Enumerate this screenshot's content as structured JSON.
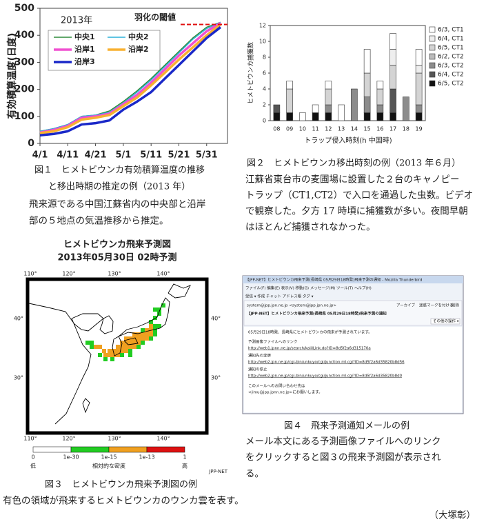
{
  "chart_data": [
    {
      "type": "line",
      "title": "2013年",
      "ylabel": "有効積算温度(日度)",
      "categories": [
        "4/1",
        null,
        "4/11",
        null,
        "4/21",
        null,
        "5/1",
        null,
        "5/11",
        null,
        "5/21",
        null,
        "5/31",
        null
      ],
      "ylim": [
        0,
        500
      ],
      "yticks": [
        0,
        100,
        200,
        300,
        400,
        500
      ],
      "series": [
        {
          "name": "中央1",
          "color": "#2e8b3a",
          "width": 1.5,
          "values": [
            45,
            55,
            70,
            100,
            105,
            120,
            155,
            195,
            240,
            290,
            340,
            390,
            430,
            448
          ]
        },
        {
          "name": "中央2",
          "color": "#2ab0d8",
          "width": 1.5,
          "values": [
            45,
            55,
            70,
            100,
            105,
            115,
            150,
            190,
            235,
            285,
            335,
            385,
            425,
            448
          ]
        },
        {
          "name": "沿岸1",
          "color": "#f050d0",
          "width": 3.5,
          "values": [
            40,
            50,
            65,
            95,
            100,
            110,
            145,
            180,
            225,
            275,
            325,
            370,
            415,
            445
          ]
        },
        {
          "name": "沿岸2",
          "color": "#f8b030",
          "width": 3.5,
          "values": [
            38,
            45,
            60,
            88,
            95,
            105,
            138,
            170,
            215,
            262,
            310,
            355,
            400,
            440
          ]
        },
        {
          "name": "沿岸3",
          "color": "#1a28c8",
          "width": 3.5,
          "values": [
            30,
            35,
            45,
            70,
            75,
            85,
            125,
            155,
            190,
            240,
            290,
            340,
            390,
            430
          ]
        }
      ],
      "threshold": {
        "label": "羽化の閾値",
        "value": 440,
        "color": "#e01010"
      }
    },
    {
      "type": "bar",
      "stacked": true,
      "ylabel": "ヒメトビウンカ捕獲数",
      "xlabel": "トラップ侵入時刻(h 中国時)",
      "categories": [
        "08",
        "09",
        "10",
        "11",
        "12",
        "13",
        "14",
        "15",
        "16",
        "17",
        "18",
        "19"
      ],
      "ylim": [
        0,
        12
      ],
      "yticks": [
        0,
        2,
        4,
        6,
        8,
        10,
        12
      ],
      "series": [
        {
          "name": "6/3, CT1",
          "color": "#ffffff",
          "values": [
            0,
            1,
            1,
            1,
            1,
            2,
            0,
            3,
            1,
            2,
            0,
            2
          ]
        },
        {
          "name": "6/4, CT1",
          "color": "#eeeeee",
          "values": [
            0,
            0,
            0,
            0,
            0,
            0,
            0,
            0,
            0,
            2,
            0,
            1
          ]
        },
        {
          "name": "6/5, CT1",
          "color": "#d4d4d4",
          "values": [
            0,
            3,
            0,
            0,
            2,
            0,
            0,
            3,
            2,
            3,
            0,
            4
          ]
        },
        {
          "name": "6/2, CT2",
          "color": "#bbbbbb",
          "values": [
            0,
            0,
            0,
            0,
            0,
            0,
            0,
            0,
            0,
            0,
            0,
            0
          ]
        },
        {
          "name": "6/3, CT2",
          "color": "#8c8c8c",
          "values": [
            0,
            0,
            0,
            0,
            1,
            0,
            4,
            2,
            1,
            0,
            3,
            1
          ]
        },
        {
          "name": "6/4, CT2",
          "color": "#555555",
          "values": [
            1,
            0,
            0,
            0,
            0,
            0,
            0,
            0,
            0,
            3,
            0,
            0
          ]
        },
        {
          "name": "6/5, CT2",
          "color": "#111111",
          "values": [
            1,
            1,
            0,
            1,
            1,
            0,
            0,
            1,
            1,
            1,
            0,
            1
          ]
        }
      ]
    }
  ],
  "figure1": {
    "caption": [
      "図１　ヒメトビウンカ有効積算温度の推移",
      "と移出時期の推定の例（2013 年）"
    ],
    "text": [
      "飛来源である中国江蘇省内の中央部と沿岸",
      "部の５地点の気温推移から推定。"
    ]
  },
  "figure2": {
    "caption": "図２　ヒメトビウンカ移出時刻の例（2013 年６月）",
    "text": [
      "江蘇省東台市の麦圃場に設置した２台のキャノピー",
      "トラップ（CT1,CT2）で入口を通過した虫数。ビデオ",
      "で観察した。夕方 17 時頃に捕獲数が多い。夜間早朝",
      "はほとんど捕獲されなかった。"
    ]
  },
  "map": {
    "title": "ヒメトビウンカ飛来予測図",
    "subtitle": "2013年05月30日 02時予測",
    "lon_ticks": [
      "110°",
      "120°",
      "130°",
      "140°"
    ],
    "lat_ticks": [
      "40°",
      "30°"
    ],
    "colorbar": {
      "ticks": [
        "0",
        "1e-30",
        "1e-15",
        "1e-13",
        "1"
      ],
      "colors": [
        "#ffffff",
        "#22cc22",
        "#f0a020",
        "#dd1111"
      ],
      "low": "低",
      "label": "相対的な密度",
      "high": "高"
    },
    "credit": "JPP-NET",
    "caption": "図３　ヒメトビウンカ飛来予測図の例"
  },
  "email": {
    "window_title": "【JPP-NET】ヒメトビウンカ飛来予測(長崎県 05月29日18時発)飛来予測の通知 - Mozilla Thunderbird",
    "menu": "ファイル(F)  編集(E)  表示(V)  移動(G)  メッセージ(M)  ツール(T)  ヘルプ(H)",
    "toolbar": "受信 ▾   作成   チャット   アドレス帳   タグ ▾",
    "from": "system@jpp.jpn.ne.jp <system@jpp.jpn.ne.jp>",
    "subject": "【JPP-NET】ヒメトビウンカ飛来予測(長崎県 05月29日18時発)飛来予測の通知",
    "buttons": [
      "アーカイブ",
      "迷惑マークを付ける",
      "削除",
      "その他の操作 ▾"
    ],
    "body": [
      "05月29日18時発、長崎県にヒメトビウンカの飛来が予測されています。",
      "予測画像ファイルへのリンク",
      "http://web1.jpnn.ne.jp/search/kaiilLink.do?ID=8d5f2a6d315170a",
      "通知先の変更",
      "http://web2.jpn.ne.jp/cgi-bin/unkuyo/cgi/junction.ml.cgi?ID=8d5f2a6d35820b8d56",
      "通知の停止",
      "http://web2.jpn.ne.jp/cgi-bin/unkuyo/cgi/junction.ml.cgi?ID=8d5f2a6d35820b8d0",
      "このメールへのお問い合わせ先は",
      "<jimu@jpp.jpnn.ne.jp>にお願いします。"
    ],
    "caption": "図４　飛来予測通知メールの例",
    "text": [
      "メール本文にある予測画像ファイルへのリンク",
      "をクリックすると図３の飛来予測図が表示され",
      "る。"
    ]
  },
  "footer": {
    "text": "有色の領域が飛来するヒメトビウンカのウンカ雲を表す。",
    "author": "（大塚彰）"
  }
}
